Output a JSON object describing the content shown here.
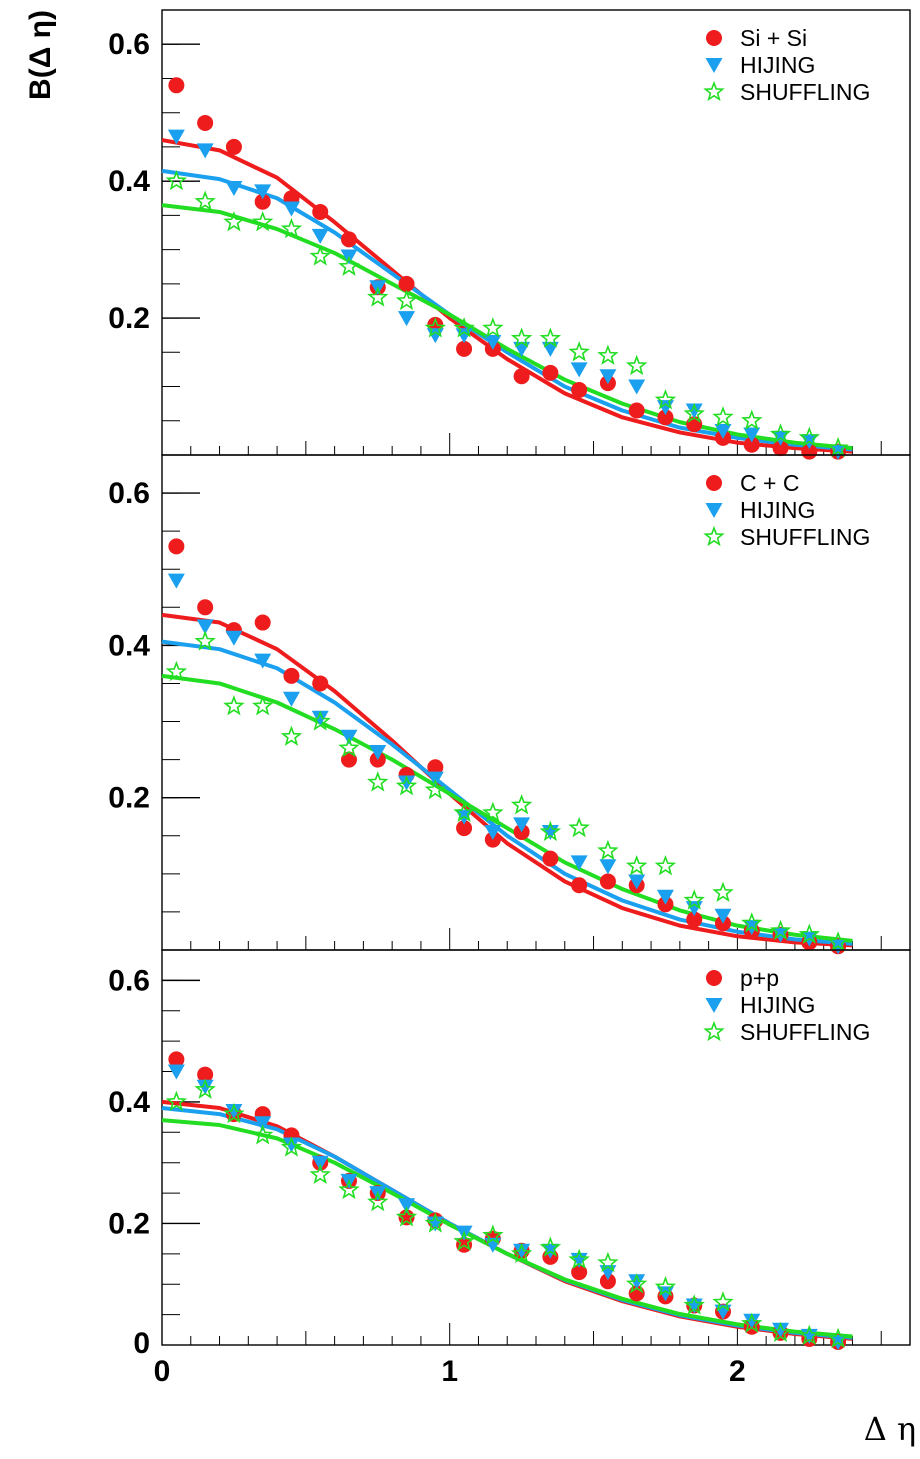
{
  "chart_data": {
    "type": "scatter",
    "ylabel": "B(Δ η)",
    "xlabel": "Δ η",
    "xlim": [
      0,
      2.6
    ],
    "ylim": [
      0,
      0.65
    ],
    "x_ticks": [
      "0",
      "1",
      "2"
    ],
    "y_ticks": [
      "0.2",
      "0.4",
      "0.6"
    ],
    "y_tick_values": [
      0.2,
      0.4,
      0.6
    ],
    "y_zero_label": "0",
    "grid": false,
    "legend_placement": "top-right",
    "colors": {
      "data": "#ee1c1c",
      "hijing": "#1aa0ee",
      "shuffling": "#22dd22"
    },
    "panels": [
      {
        "name": "Si + Si",
        "legend": [
          "Si + Si",
          "HIJING",
          "SHUFFLING"
        ],
        "series": [
          {
            "name": "Si + Si",
            "marker": "circle",
            "color": "#ee1c1c",
            "x": [
              0.05,
              0.15,
              0.25,
              0.35,
              0.45,
              0.55,
              0.65,
              0.75,
              0.85,
              0.95,
              1.05,
              1.15,
              1.25,
              1.35,
              1.45,
              1.55,
              1.65,
              1.75,
              1.85,
              1.95,
              2.05,
              2.15,
              2.25,
              2.35
            ],
            "y": [
              0.54,
              0.485,
              0.45,
              0.37,
              0.375,
              0.355,
              0.315,
              0.245,
              0.25,
              0.19,
              0.155,
              0.155,
              0.115,
              0.12,
              0.095,
              0.105,
              0.065,
              0.055,
              0.045,
              0.025,
              0.015,
              0.01,
              0.005,
              0.005
            ]
          },
          {
            "name": "HIJING",
            "marker": "triangle-down",
            "color": "#1aa0ee",
            "x": [
              0.05,
              0.15,
              0.25,
              0.35,
              0.45,
              0.55,
              0.65,
              0.75,
              0.85,
              0.95,
              1.05,
              1.15,
              1.25,
              1.35,
              1.45,
              1.55,
              1.65,
              1.75,
              1.85,
              1.95,
              2.05,
              2.15,
              2.25,
              2.35
            ],
            "y": [
              0.465,
              0.445,
              0.39,
              0.385,
              0.36,
              0.32,
              0.29,
              0.245,
              0.2,
              0.175,
              0.175,
              0.165,
              0.155,
              0.155,
              0.125,
              0.115,
              0.1,
              0.07,
              0.065,
              0.035,
              0.03,
              0.025,
              0.02,
              0.005
            ]
          },
          {
            "name": "SHUFFLING",
            "marker": "star",
            "color": "#22dd22",
            "x": [
              0.05,
              0.15,
              0.25,
              0.35,
              0.45,
              0.55,
              0.65,
              0.75,
              0.85,
              0.95,
              1.05,
              1.15,
              1.25,
              1.35,
              1.45,
              1.55,
              1.65,
              1.75,
              1.85,
              1.95,
              2.05,
              2.15,
              2.25,
              2.35
            ],
            "y": [
              0.4,
              0.37,
              0.34,
              0.34,
              0.33,
              0.29,
              0.275,
              0.23,
              0.225,
              0.185,
              0.185,
              0.185,
              0.17,
              0.17,
              0.15,
              0.145,
              0.13,
              0.08,
              0.06,
              0.055,
              0.05,
              0.03,
              0.025,
              0.01
            ]
          }
        ],
        "fits": [
          {
            "series": "Si + Si",
            "color": "#ee1c1c",
            "x": [
              0,
              0.2,
              0.4,
              0.6,
              0.8,
              1.0,
              1.2,
              1.4,
              1.6,
              1.8,
              2.0,
              2.2,
              2.4
            ],
            "y": [
              0.46,
              0.445,
              0.405,
              0.34,
              0.27,
              0.2,
              0.14,
              0.09,
              0.055,
              0.033,
              0.018,
              0.01,
              0.005
            ]
          },
          {
            "series": "HIJING",
            "color": "#1aa0ee",
            "x": [
              0,
              0.2,
              0.4,
              0.6,
              0.8,
              1.0,
              1.2,
              1.4,
              1.6,
              1.8,
              2.0,
              2.2,
              2.4
            ],
            "y": [
              0.415,
              0.403,
              0.375,
              0.325,
              0.265,
              0.205,
              0.15,
              0.1,
              0.065,
              0.04,
              0.025,
              0.015,
              0.008
            ]
          },
          {
            "series": "SHUFFLING",
            "color": "#22dd22",
            "x": [
              0,
              0.2,
              0.4,
              0.6,
              0.8,
              1.0,
              1.2,
              1.4,
              1.6,
              1.8,
              2.0,
              2.2,
              2.4
            ],
            "y": [
              0.365,
              0.355,
              0.33,
              0.295,
              0.25,
              0.205,
              0.155,
              0.11,
              0.075,
              0.048,
              0.03,
              0.018,
              0.01
            ]
          }
        ]
      },
      {
        "name": "C + C",
        "legend": [
          "C + C",
          "HIJING",
          "SHUFFLING"
        ],
        "series": [
          {
            "name": "C + C",
            "marker": "circle",
            "color": "#ee1c1c",
            "x": [
              0.05,
              0.15,
              0.25,
              0.35,
              0.45,
              0.55,
              0.65,
              0.75,
              0.85,
              0.95,
              1.05,
              1.15,
              1.25,
              1.35,
              1.45,
              1.55,
              1.65,
              1.75,
              1.85,
              1.95,
              2.05,
              2.15,
              2.25,
              2.35
            ],
            "y": [
              0.53,
              0.45,
              0.42,
              0.43,
              0.36,
              0.35,
              0.25,
              0.25,
              0.23,
              0.24,
              0.16,
              0.145,
              0.155,
              0.12,
              0.085,
              0.09,
              0.085,
              0.06,
              0.04,
              0.035,
              0.025,
              0.02,
              0.01,
              0.005
            ]
          },
          {
            "name": "HIJING",
            "marker": "triangle-down",
            "color": "#1aa0ee",
            "x": [
              0.05,
              0.15,
              0.25,
              0.35,
              0.45,
              0.55,
              0.65,
              0.75,
              0.85,
              0.95,
              1.05,
              1.15,
              1.25,
              1.35,
              1.45,
              1.55,
              1.65,
              1.75,
              1.85,
              1.95,
              2.05,
              2.15,
              2.25,
              2.35
            ],
            "y": [
              0.485,
              0.425,
              0.41,
              0.38,
              0.33,
              0.305,
              0.28,
              0.26,
              0.22,
              0.225,
              0.175,
              0.155,
              0.165,
              0.155,
              0.115,
              0.11,
              0.09,
              0.07,
              0.055,
              0.045,
              0.03,
              0.02,
              0.015,
              0.005
            ]
          },
          {
            "name": "SHUFFLING",
            "marker": "star",
            "color": "#22dd22",
            "x": [
              0.05,
              0.15,
              0.25,
              0.35,
              0.45,
              0.55,
              0.65,
              0.75,
              0.85,
              0.95,
              1.05,
              1.15,
              1.25,
              1.35,
              1.45,
              1.55,
              1.65,
              1.75,
              1.85,
              1.95,
              2.05,
              2.15,
              2.25,
              2.35
            ],
            "y": [
              0.365,
              0.405,
              0.32,
              0.32,
              0.28,
              0.3,
              0.265,
              0.22,
              0.215,
              0.21,
              0.18,
              0.18,
              0.19,
              0.155,
              0.16,
              0.13,
              0.11,
              0.11,
              0.065,
              0.075,
              0.035,
              0.025,
              0.02,
              0.01
            ]
          }
        ],
        "fits": [
          {
            "series": "C + C",
            "color": "#ee1c1c",
            "x": [
              0,
              0.2,
              0.4,
              0.6,
              0.8,
              1.0,
              1.2,
              1.4,
              1.6,
              1.8,
              2.0,
              2.2,
              2.4
            ],
            "y": [
              0.44,
              0.43,
              0.395,
              0.34,
              0.275,
              0.205,
              0.14,
              0.09,
              0.055,
              0.032,
              0.018,
              0.01,
              0.006
            ]
          },
          {
            "series": "HIJING",
            "color": "#1aa0ee",
            "x": [
              0,
              0.2,
              0.4,
              0.6,
              0.8,
              1.0,
              1.2,
              1.4,
              1.6,
              1.8,
              2.0,
              2.2,
              2.4
            ],
            "y": [
              0.405,
              0.395,
              0.37,
              0.325,
              0.27,
              0.21,
              0.15,
              0.1,
              0.065,
              0.04,
              0.024,
              0.014,
              0.008
            ]
          },
          {
            "series": "SHUFFLING",
            "color": "#22dd22",
            "x": [
              0,
              0.2,
              0.4,
              0.6,
              0.8,
              1.0,
              1.2,
              1.4,
              1.6,
              1.8,
              2.0,
              2.2,
              2.4
            ],
            "y": [
              0.36,
              0.35,
              0.325,
              0.29,
              0.25,
              0.205,
              0.16,
              0.115,
              0.08,
              0.052,
              0.032,
              0.02,
              0.012
            ]
          }
        ]
      },
      {
        "name": "p+p",
        "legend": [
          "p+p",
          "HIJING",
          "SHUFFLING"
        ],
        "series": [
          {
            "name": "p+p",
            "marker": "circle",
            "color": "#ee1c1c",
            "x": [
              0.05,
              0.15,
              0.25,
              0.35,
              0.45,
              0.55,
              0.65,
              0.75,
              0.85,
              0.95,
              1.05,
              1.15,
              1.25,
              1.35,
              1.45,
              1.55,
              1.65,
              1.75,
              1.85,
              1.95,
              2.05,
              2.15,
              2.25,
              2.35
            ],
            "y": [
              0.47,
              0.445,
              0.38,
              0.38,
              0.345,
              0.3,
              0.27,
              0.25,
              0.21,
              0.205,
              0.165,
              0.175,
              0.155,
              0.145,
              0.12,
              0.105,
              0.085,
              0.08,
              0.065,
              0.055,
              0.03,
              0.02,
              0.01,
              0.005
            ]
          },
          {
            "name": "HIJING",
            "marker": "triangle-down",
            "color": "#1aa0ee",
            "x": [
              0.05,
              0.15,
              0.25,
              0.35,
              0.45,
              0.55,
              0.65,
              0.75,
              0.85,
              0.95,
              1.05,
              1.15,
              1.25,
              1.35,
              1.45,
              1.55,
              1.65,
              1.75,
              1.85,
              1.95,
              2.05,
              2.15,
              2.25,
              2.35
            ],
            "y": [
              0.45,
              0.425,
              0.385,
              0.365,
              0.33,
              0.3,
              0.27,
              0.25,
              0.23,
              0.2,
              0.185,
              0.165,
              0.155,
              0.155,
              0.14,
              0.12,
              0.105,
              0.085,
              0.065,
              0.055,
              0.04,
              0.025,
              0.015,
              0.005
            ]
          },
          {
            "name": "SHUFFLING",
            "marker": "star",
            "color": "#22dd22",
            "x": [
              0.05,
              0.15,
              0.25,
              0.35,
              0.45,
              0.55,
              0.65,
              0.75,
              0.85,
              0.95,
              1.05,
              1.15,
              1.25,
              1.35,
              1.45,
              1.55,
              1.65,
              1.75,
              1.85,
              1.95,
              2.05,
              2.15,
              2.25,
              2.35
            ],
            "y": [
              0.4,
              0.42,
              0.38,
              0.345,
              0.325,
              0.28,
              0.255,
              0.235,
              0.21,
              0.2,
              0.17,
              0.18,
              0.15,
              0.16,
              0.14,
              0.135,
              0.1,
              0.095,
              0.065,
              0.07,
              0.035,
              0.02,
              0.015,
              0.01
            ]
          }
        ],
        "fits": [
          {
            "series": "p+p",
            "color": "#ee1c1c",
            "x": [
              0,
              0.2,
              0.4,
              0.6,
              0.8,
              1.0,
              1.2,
              1.4,
              1.6,
              1.8,
              2.0,
              2.2,
              2.4
            ],
            "y": [
              0.4,
              0.39,
              0.36,
              0.31,
              0.255,
              0.2,
              0.15,
              0.105,
              0.072,
              0.047,
              0.03,
              0.018,
              0.01
            ]
          },
          {
            "series": "HIJING",
            "color": "#1aa0ee",
            "x": [
              0,
              0.2,
              0.4,
              0.6,
              0.8,
              1.0,
              1.2,
              1.4,
              1.6,
              1.8,
              2.0,
              2.2,
              2.4
            ],
            "y": [
              0.39,
              0.38,
              0.355,
              0.31,
              0.255,
              0.2,
              0.15,
              0.107,
              0.074,
              0.049,
              0.032,
              0.02,
              0.012
            ]
          },
          {
            "series": "SHUFFLING",
            "color": "#22dd22",
            "x": [
              0,
              0.2,
              0.4,
              0.6,
              0.8,
              1.0,
              1.2,
              1.4,
              1.6,
              1.8,
              2.0,
              2.2,
              2.4
            ],
            "y": [
              0.37,
              0.362,
              0.34,
              0.3,
              0.25,
              0.198,
              0.15,
              0.108,
              0.076,
              0.051,
              0.034,
              0.022,
              0.014
            ]
          }
        ]
      }
    ]
  }
}
